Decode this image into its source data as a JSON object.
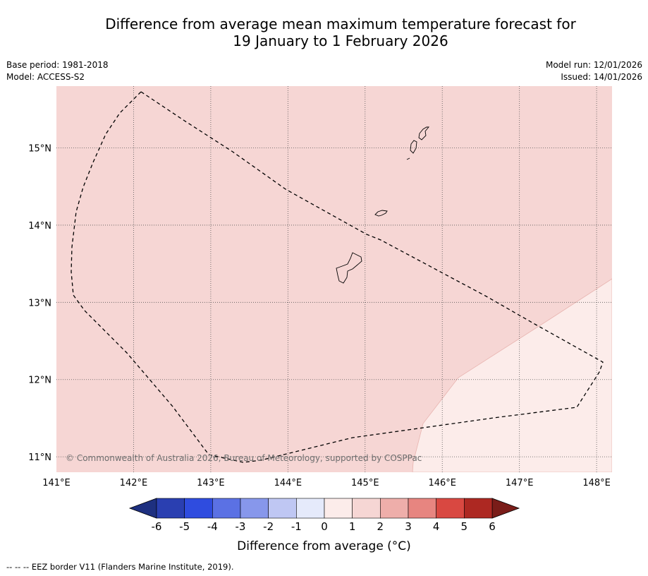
{
  "title": {
    "line1": "Difference from average mean maximum temperature forecast for",
    "line2": "19 January to 1 February 2026"
  },
  "meta_left": {
    "base_period": "Base period: 1981-2018",
    "model": "Model: ACCESS-S2"
  },
  "meta_right": {
    "model_run": "Model run: 12/01/2026",
    "issued": "Issued: 14/01/2026"
  },
  "map": {
    "lon_range": [
      141,
      148.2
    ],
    "lat_range": [
      10.8,
      15.8
    ],
    "lon_ticks": [
      141,
      142,
      143,
      144,
      145,
      146,
      147,
      148
    ],
    "lat_ticks": [
      11,
      12,
      13,
      14,
      15
    ],
    "lon_labels": [
      "141°E",
      "142°E",
      "143°E",
      "144°E",
      "145°E",
      "146°E",
      "147°E",
      "148°E"
    ],
    "lat_labels": [
      "11°N",
      "12°N",
      "13°N",
      "14°N",
      "15°N"
    ],
    "copyright": "© Commonwealth of Australia 2026, Bureau of Meteorology, supported by COSPPac",
    "region_colors": {
      "anomaly_1_to_2": "#f6d6d4",
      "anomaly_0_to_1": "#fcecea"
    }
  },
  "colorbar": {
    "labels": [
      "-6",
      "-5",
      "-4",
      "-3",
      "-2",
      "-1",
      "0",
      "1",
      "2",
      "3",
      "4",
      "5",
      "6"
    ],
    "colors": [
      "#2a3fb1",
      "#2f4cdf",
      "#5b71e4",
      "#8797eb",
      "#bfc7f3",
      "#e5eafb",
      "#fcecea",
      "#f6d6d4",
      "#eeaeaa",
      "#e78580",
      "#d94841",
      "#ad2822"
    ],
    "below_color": "#1e3080",
    "above_color": "#7a1d19",
    "title": "Difference from average (°C)"
  },
  "footnote": "--  --  -- EEZ border V11 (Flanders Marine Institute, 2019)."
}
